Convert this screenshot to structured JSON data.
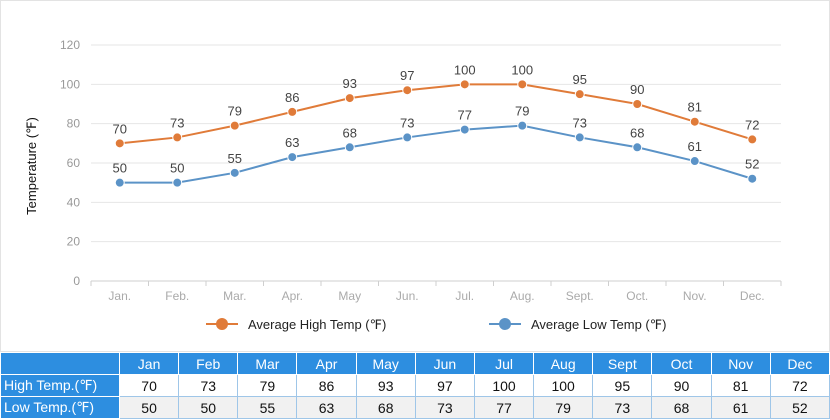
{
  "chart_data": {
    "type": "line",
    "categories": [
      "Jan.",
      "Feb.",
      "Mar.",
      "Apr.",
      "May",
      "Jun.",
      "Jul.",
      "Aug.",
      "Sept.",
      "Oct.",
      "Nov.",
      "Dec."
    ],
    "series": [
      {
        "name": "Average High Temp (℉)",
        "values": [
          70,
          73,
          79,
          86,
          93,
          97,
          100,
          100,
          95,
          90,
          81,
          72
        ],
        "color": "#e07b39"
      },
      {
        "name": "Average Low Temp (℉)",
        "values": [
          50,
          50,
          55,
          63,
          68,
          73,
          77,
          79,
          73,
          68,
          61,
          52
        ],
        "color": "#5b93c7"
      }
    ],
    "ylabel": "Temperature (℉)",
    "ylim": [
      0,
      120
    ],
    "yticks": [
      0,
      20,
      40,
      60,
      80,
      100,
      120
    ],
    "grid": true,
    "legend": "bottom"
  },
  "table": {
    "columns": [
      "Jan",
      "Feb",
      "Mar",
      "Apr",
      "May",
      "Jun",
      "Jul",
      "Aug",
      "Sept",
      "Oct",
      "Nov",
      "Dec"
    ],
    "rows": [
      {
        "label": "High Temp.(℉)",
        "values": [
          "70",
          "73",
          "79",
          "86",
          "93",
          "97",
          "100",
          "100",
          "95",
          "90",
          "81",
          "72"
        ]
      },
      {
        "label": "Low Temp.(℉)",
        "values": [
          "50",
          "50",
          "55",
          "63",
          "68",
          "73",
          "77",
          "79",
          "73",
          "68",
          "61",
          "52"
        ]
      }
    ],
    "header_color": "#2d8ee0"
  }
}
